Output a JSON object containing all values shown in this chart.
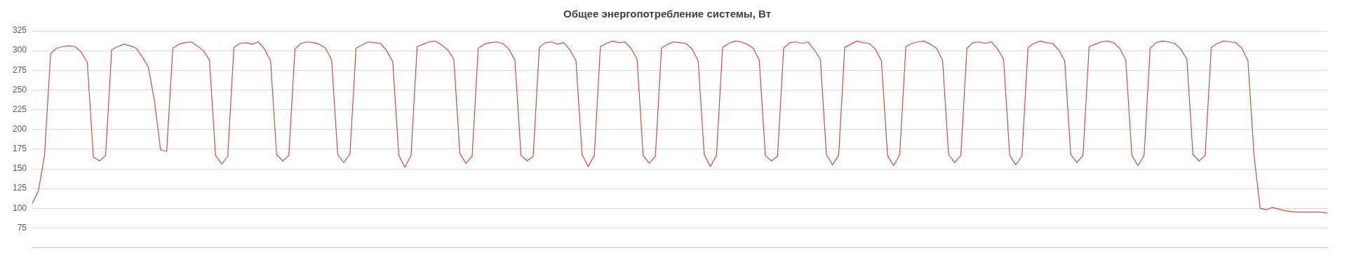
{
  "chart_data": {
    "type": "line",
    "title": "Общее энергопотребление системы, Вт",
    "categories": [
      null,
      null,
      null,
      null,
      null,
      null,
      null,
      null,
      null,
      null,
      null,
      null,
      null,
      null,
      null,
      null,
      null,
      null,
      null,
      null,
      null,
      null,
      null,
      null,
      null,
      null,
      null,
      null,
      null,
      null,
      null,
      null,
      null,
      null,
      null,
      null,
      null,
      null,
      null,
      null,
      null,
      null,
      null,
      null,
      null,
      null,
      null,
      null,
      null,
      null,
      null,
      null,
      null,
      null,
      null,
      null,
      null,
      null,
      null,
      null,
      null,
      null,
      null,
      null,
      null,
      null,
      null,
      null,
      null,
      null,
      null,
      null,
      null,
      null,
      null,
      null,
      null,
      null,
      null,
      null,
      null,
      null,
      null,
      null,
      null,
      null,
      null,
      null,
      null,
      null,
      null,
      null,
      null,
      null,
      null,
      null,
      null,
      null,
      null,
      null,
      null,
      null,
      null,
      null,
      null,
      null,
      null,
      null,
      null,
      null,
      null,
      null,
      null,
      null,
      null,
      null,
      null,
      null,
      null,
      null,
      null,
      null,
      null,
      null,
      null,
      null,
      null,
      null,
      null,
      null,
      null,
      null,
      null,
      null,
      null,
      null,
      null,
      null,
      null,
      null,
      null,
      null,
      null,
      null,
      null,
      null,
      null,
      null,
      null,
      null,
      null,
      null,
      null,
      null,
      null,
      null,
      null,
      null,
      null,
      null,
      null,
      null,
      null,
      null,
      null,
      null,
      null,
      null,
      null,
      null,
      null,
      null,
      null,
      null,
      null,
      null,
      null,
      null,
      null,
      null,
      null,
      null,
      null,
      null,
      null,
      null,
      null,
      null,
      null,
      null,
      null,
      null,
      null,
      null,
      null,
      null,
      null,
      null,
      null,
      null,
      null,
      null,
      null,
      null,
      null,
      null,
      null,
      null,
      null,
      null,
      null,
      null,
      null
    ],
    "series": [
      {
        "color": "#c0504d",
        "values": [
          106,
          122,
          167,
          296,
          303,
          305,
          306,
          305,
          298,
          285,
          165,
          160,
          167,
          301,
          305,
          308,
          306,
          303,
          292,
          279,
          236,
          174,
          172,
          303,
          308,
          310,
          311,
          306,
          300,
          288,
          167,
          156,
          166,
          304,
          309,
          310,
          308,
          311,
          302,
          287,
          168,
          160,
          167,
          302,
          309,
          311,
          310,
          308,
          303,
          288,
          168,
          158,
          169,
          303,
          307,
          311,
          310,
          309,
          300,
          286,
          167,
          152,
          167,
          305,
          308,
          311,
          312,
          307,
          301,
          289,
          169,
          157,
          166,
          303,
          308,
          310,
          311,
          309,
          302,
          288,
          167,
          160,
          166,
          304,
          310,
          311,
          308,
          310,
          301,
          287,
          168,
          153,
          167,
          305,
          309,
          312,
          310,
          311,
          303,
          289,
          167,
          157,
          166,
          303,
          308,
          311,
          310,
          309,
          302,
          287,
          168,
          153,
          167,
          304,
          309,
          312,
          311,
          308,
          303,
          288,
          167,
          160,
          166,
          303,
          310,
          311,
          309,
          311,
          301,
          289,
          168,
          155,
          167,
          304,
          308,
          312,
          310,
          309,
          302,
          287,
          167,
          154,
          168,
          305,
          309,
          311,
          312,
          308,
          303,
          288,
          168,
          158,
          167,
          303,
          310,
          311,
          309,
          311,
          302,
          289,
          167,
          155,
          166,
          304,
          309,
          312,
          310,
          309,
          301,
          287,
          168,
          158,
          167,
          305,
          308,
          311,
          312,
          310,
          303,
          288,
          167,
          154,
          167,
          303,
          310,
          312,
          311,
          309,
          302,
          289,
          168,
          160,
          167,
          304,
          309,
          312,
          311,
          310,
          303,
          287,
          167,
          100,
          98,
          101,
          99,
          97,
          96,
          95,
          95,
          95,
          95,
          95,
          94
        ]
      }
    ],
    "ylim": [
      50,
      325
    ],
    "yticks": [
      75,
      100,
      125,
      150,
      175,
      200,
      225,
      250,
      275,
      300,
      325
    ],
    "grid": "y",
    "legend": false,
    "marker": "none",
    "line_style": "solid"
  }
}
